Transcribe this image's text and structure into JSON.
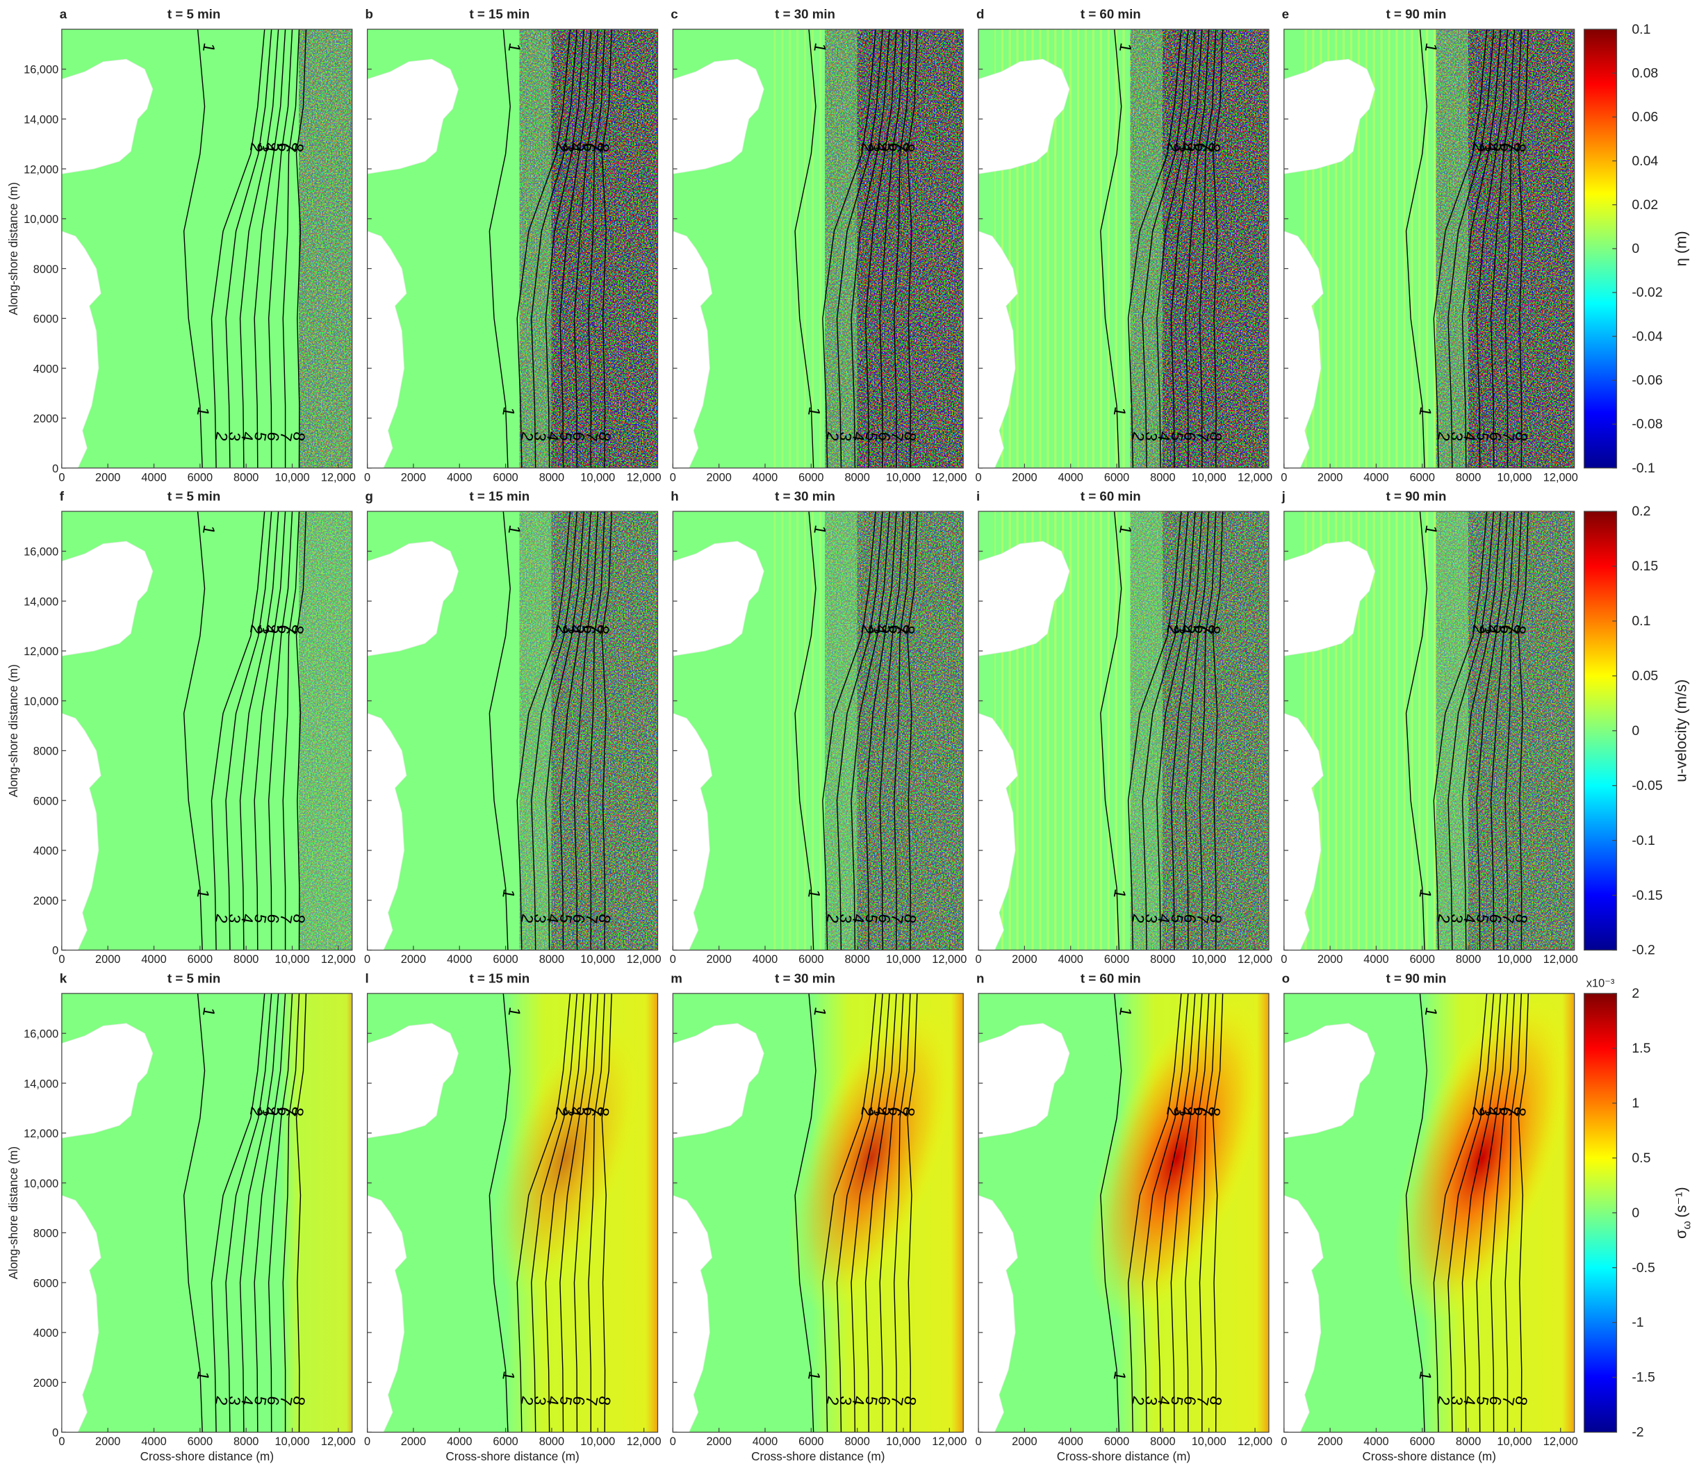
{
  "chart_data": {
    "type": "heatmap-grid",
    "panels": [
      {
        "letter": "a",
        "title": "t = 5 min"
      },
      {
        "letter": "b",
        "title": "t = 15 min"
      },
      {
        "letter": "c",
        "title": "t = 30 min"
      },
      {
        "letter": "d",
        "title": "t = 60 min"
      },
      {
        "letter": "e",
        "title": "t = 90 min"
      },
      {
        "letter": "f",
        "title": "t = 5 min"
      },
      {
        "letter": "g",
        "title": "t = 15 min"
      },
      {
        "letter": "h",
        "title": "t = 30 min"
      },
      {
        "letter": "i",
        "title": "t = 60 min"
      },
      {
        "letter": "j",
        "title": "t = 90 min"
      },
      {
        "letter": "k",
        "title": "t = 5 min"
      },
      {
        "letter": "l",
        "title": "t = 15 min"
      },
      {
        "letter": "m",
        "title": "t = 30 min"
      },
      {
        "letter": "n",
        "title": "t = 60 min"
      },
      {
        "letter": "o",
        "title": "t = 90 min"
      }
    ],
    "x_label": "Cross-shore distance (m)",
    "y_label": "Along-shore distance (m)",
    "xlim": [
      0,
      12600
    ],
    "xticks": [
      0,
      2000,
      4000,
      6000,
      8000,
      {
        "value": 10000,
        "label": "10,000"
      },
      {
        "value": 12000,
        "label": "12,000"
      }
    ],
    "ylim": [
      0,
      17600
    ],
    "yticks": [
      0,
      2000,
      4000,
      6000,
      8000,
      {
        "value": 10000,
        "label": "10,000"
      },
      {
        "value": 12000,
        "label": "12,000"
      },
      {
        "value": 14000,
        "label": "14,000"
      },
      {
        "value": 16000,
        "label": "16,000"
      }
    ],
    "contour_labels": [
      "1",
      "2",
      "3",
      "4",
      "5",
      "6",
      "7",
      "8"
    ],
    "colorbars": [
      {
        "label": "η (m)",
        "lim": [
          -0.1,
          0.1
        ],
        "ticks": [
          0.1,
          0.08,
          0.06,
          0.04,
          0.02,
          0,
          -0.02,
          -0.04,
          -0.06,
          -0.08,
          -0.1
        ]
      },
      {
        "label": "u-velocity (m/s)",
        "lim": [
          -0.2,
          0.2
        ],
        "ticks": [
          0.2,
          0.15,
          0.1,
          0.05,
          0,
          -0.05,
          -0.1,
          -0.15,
          -0.2
        ]
      },
      {
        "label": "σ",
        "label_sub": "ω",
        "label_unit": "(s⁻¹)",
        "multiplier": "x10⁻³",
        "lim": [
          -2,
          2
        ],
        "ticks": [
          2,
          1.5,
          1,
          0.5,
          0,
          -0.5,
          -1,
          -1.5,
          -2
        ]
      }
    ]
  }
}
